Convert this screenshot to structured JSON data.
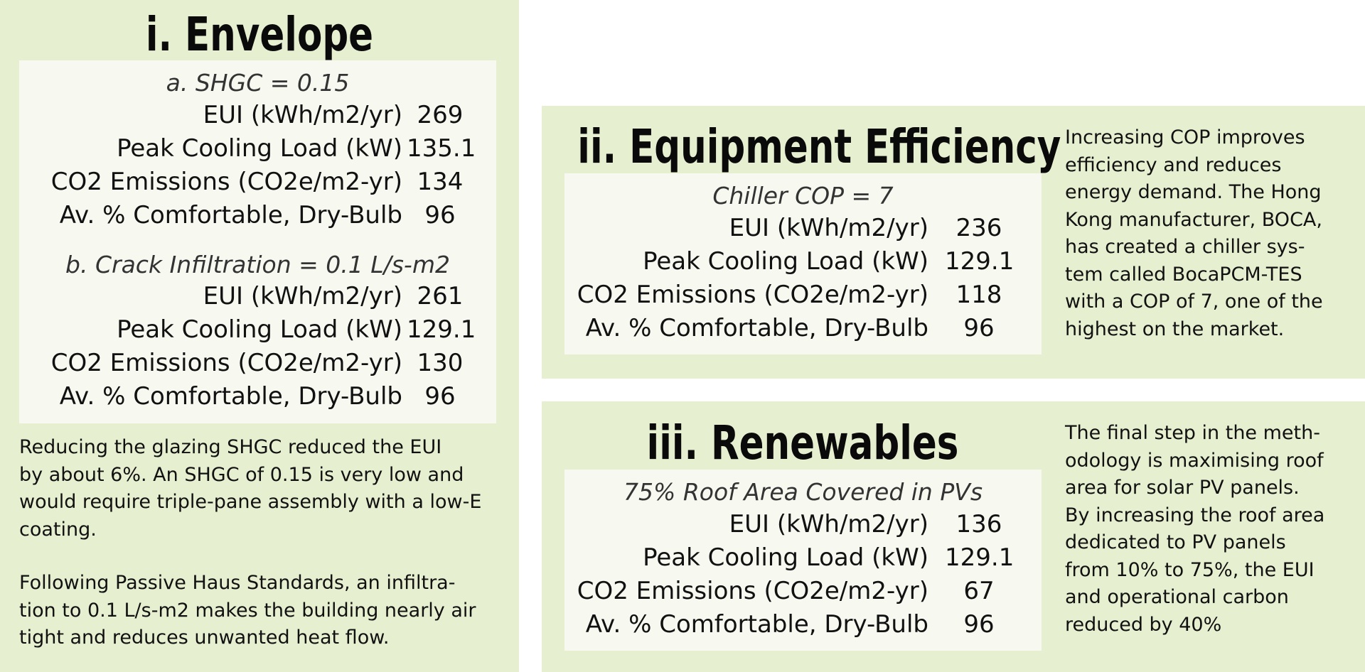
{
  "envelope": {
    "heading": "i. Envelope",
    "cases": [
      {
        "subtitle": "a. SHGC = 0.15",
        "rows": [
          {
            "label": "EUI (kWh/m2/yr)",
            "value": "269"
          },
          {
            "label": "Peak Cooling Load (kW)",
            "value": "135.1"
          },
          {
            "label": "CO2 Emissions (CO2e/m2-yr)",
            "value": "134"
          },
          {
            "label": "Av. % Comfortable, Dry-Bulb",
            "value": "96"
          }
        ]
      },
      {
        "subtitle": "b. Crack Infiltration = 0.1 L/s-m2",
        "rows": [
          {
            "label": "EUI (kWh/m2/yr)",
            "value": "261"
          },
          {
            "label": "Peak Cooling Load (kW)",
            "value": "129.1"
          },
          {
            "label": "CO2 Emissions (CO2e/m2-yr)",
            "value": "130"
          },
          {
            "label": "Av. % Comfortable, Dry-Bulb",
            "value": "96"
          }
        ]
      }
    ],
    "paragraph1": [
      "Reducing the glazing SHGC reduced the EUI",
      "by about 6%. An SHGC of 0.15 is very low and",
      "would require triple-pane assembly with a low-E",
      "coating."
    ],
    "paragraph2": [
      "Following Passive Haus Standards, an infiltra-",
      "tion to 0.1 L/s-m2 makes the building nearly air",
      "tight and reduces unwanted heat flow."
    ]
  },
  "equipment": {
    "heading": "ii. Equipment Efficiency",
    "subtitle": "Chiller COP = 7",
    "rows": [
      {
        "label": "EUI (kWh/m2/yr)",
        "value": "236"
      },
      {
        "label": "Peak Cooling Load (kW)",
        "value": "129.1"
      },
      {
        "label": "CO2 Emissions (CO2e/m2-yr)",
        "value": "118"
      },
      {
        "label": "Av. % Comfortable, Dry-Bulb",
        "value": "96"
      }
    ],
    "description": [
      "Increasing COP improves",
      "efficiency and reduces",
      "energy demand. The Hong",
      "Kong manufacturer, BOCA,",
      "has created a chiller sys-",
      "tem called BocaPCM-TES",
      "with a COP of 7, one of the",
      "highest on the market."
    ]
  },
  "renewables": {
    "heading": "iii. Renewables",
    "subtitle": "75% Roof Area Covered in PVs",
    "rows": [
      {
        "label": "EUI (kWh/m2/yr)",
        "value": "136"
      },
      {
        "label": "Peak Cooling Load (kW)",
        "value": "129.1"
      },
      {
        "label": "CO2 Emissions (CO2e/m2-yr)",
        "value": "67"
      },
      {
        "label": "Av. % Comfortable, Dry-Bulb",
        "value": "96"
      }
    ],
    "description": [
      "The final step in the meth-",
      "odology is maximising roof",
      "area for solar PV panels.",
      "By increasing the roof area",
      "dedicated to PV panels",
      "from 10% to 75%, the EUI",
      "and operational carbon",
      "reduced by 40%"
    ]
  },
  "colors": {
    "panel_background": "#e6f0d1",
    "table_background": "#f7f9f1",
    "text": "#111111"
  }
}
